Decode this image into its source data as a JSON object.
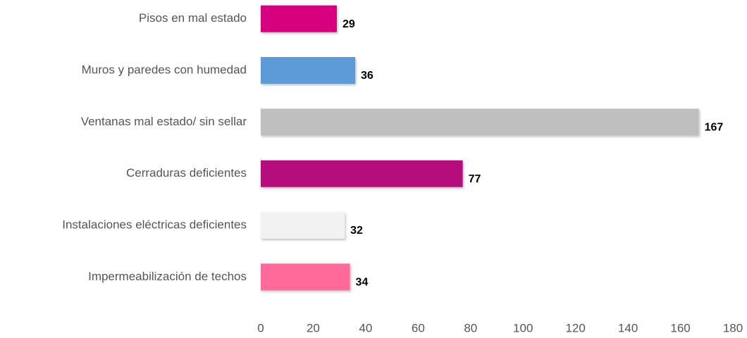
{
  "chart_data": {
    "type": "bar",
    "orientation": "horizontal",
    "categories": [
      "Pisos en mal estado",
      "Muros y paredes con humedad",
      "Ventanas mal estado/ sin sellar",
      "Cerraduras deficientes",
      "Instalaciones eléctricas deficientes",
      "Impermeabilización de techos"
    ],
    "values": [
      29,
      36,
      167,
      77,
      32,
      34
    ],
    "colors": [
      "#d6007f",
      "#5b9bd5",
      "#bfbfbf",
      "#b5117c",
      "#f2f2f2",
      "#ff6b9a"
    ],
    "xlim": [
      0,
      180
    ],
    "xticks": [
      0,
      20,
      40,
      60,
      80,
      100,
      120,
      140,
      160,
      180
    ],
    "grid": false
  }
}
